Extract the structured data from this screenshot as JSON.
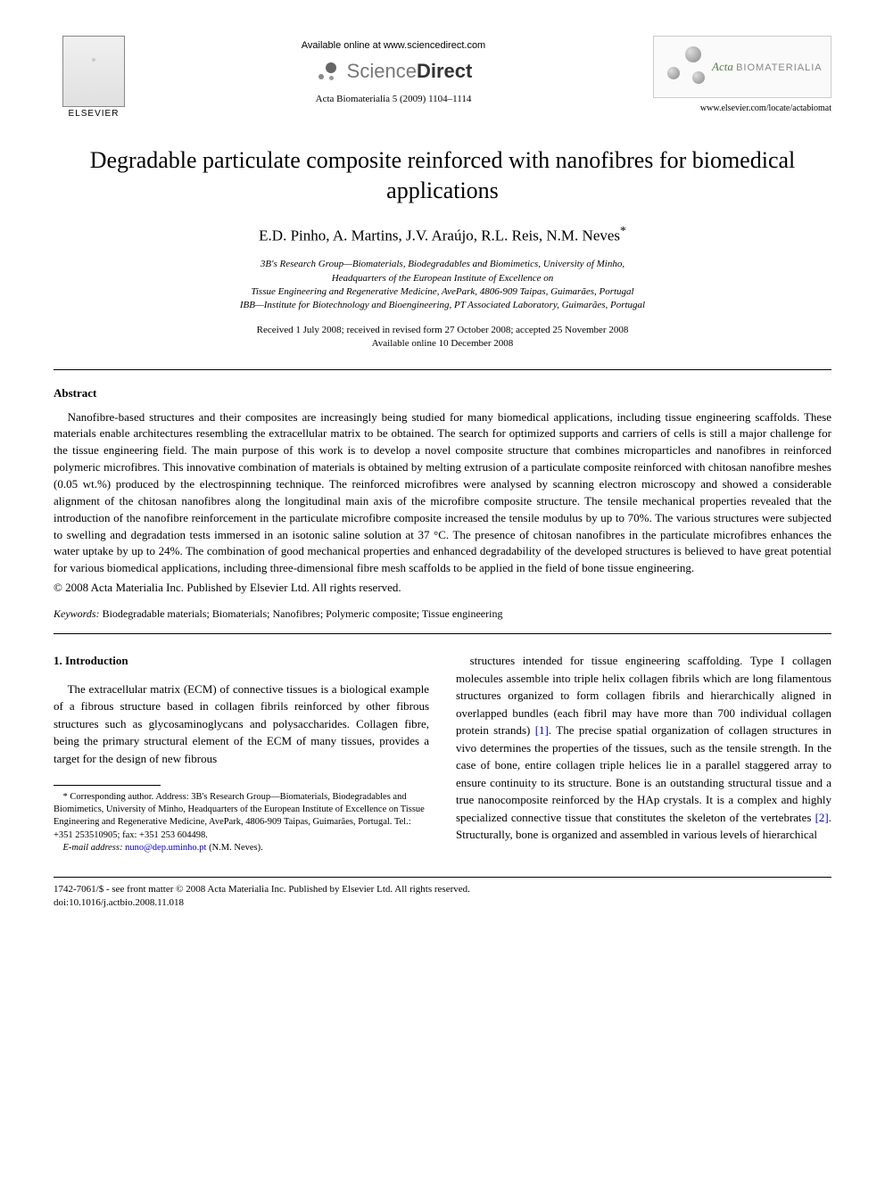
{
  "header": {
    "elsevier_label": "ELSEVIER",
    "available_online": "Available online at www.sciencedirect.com",
    "sciencedirect_light": "Science",
    "sciencedirect_bold": "Direct",
    "citation": "Acta Biomaterialia 5 (2009) 1104–1114",
    "journal_acta": "Acta",
    "journal_bio": "BIOMATERIALIA",
    "journal_url": "www.elsevier.com/locate/actabiomat"
  },
  "article": {
    "title": "Degradable particulate composite reinforced with nanofibres for biomedical applications",
    "authors": "E.D. Pinho, A. Martins, J.V. Araújo, R.L. Reis, N.M. Neves",
    "corr_marker": "*",
    "affiliation1": "3B's Research Group—Biomaterials, Biodegradables and Biomimetics, University of Minho,",
    "affiliation2": "Headquarters of the European Institute of Excellence on",
    "affiliation3": "Tissue Engineering and Regenerative Medicine, AvePark, 4806-909 Taipas, Guimarães, Portugal",
    "affiliation4": "IBB—Institute for Biotechnology and Bioengineering, PT Associated Laboratory, Guimarães, Portugal",
    "dates1": "Received 1 July 2008; received in revised form 27 October 2008; accepted 25 November 2008",
    "dates2": "Available online 10 December 2008"
  },
  "abstract": {
    "heading": "Abstract",
    "body": "Nanofibre-based structures and their composites are increasingly being studied for many biomedical applications, including tissue engineering scaffolds. These materials enable architectures resembling the extracellular matrix to be obtained. The search for optimized supports and carriers of cells is still a major challenge for the tissue engineering field. The main purpose of this work is to develop a novel composite structure that combines microparticles and nanofibres in reinforced polymeric microfibres. This innovative combination of materials is obtained by melting extrusion of a particulate composite reinforced with chitosan nanofibre meshes (0.05 wt.%) produced by the electrospinning technique. The reinforced microfibres were analysed by scanning electron microscopy and showed a considerable alignment of the chitosan nanofibres along the longitudinal main axis of the microfibre composite structure. The tensile mechanical properties revealed that the introduction of the nanofibre reinforcement in the particulate microfibre composite increased the tensile modulus by up to 70%. The various structures were subjected to swelling and degradation tests immersed in an isotonic saline solution at 37 °C. The presence of chitosan nanofibres in the particulate microfibres enhances the water uptake by up to 24%. The combination of good mechanical properties and enhanced degradability of the developed structures is believed to have great potential for various biomedical applications, including three-dimensional fibre mesh scaffolds to be applied in the field of bone tissue engineering.",
    "copyright": "© 2008 Acta Materialia Inc. Published by Elsevier Ltd. All rights reserved."
  },
  "keywords": {
    "label": "Keywords:",
    "list": "Biodegradable materials; Biomaterials; Nanofibres; Polymeric composite; Tissue engineering"
  },
  "intro": {
    "heading": "1. Introduction",
    "col1": "The extracellular matrix (ECM) of connective tissues is a biological example of a fibrous structure based in collagen fibrils reinforced by other fibrous structures such as glycosaminoglycans and polysaccharides. Collagen fibre, being the primary structural element of the ECM of many tissues, provides a target for the design of new fibrous",
    "col2a": "structures intended for tissue engineering scaffolding. Type I collagen molecules assemble into triple helix collagen fibrils which are long filamentous structures organized to form collagen fibrils and hierarchically aligned in overlapped bundles (each fibril may have more than 700 individual collagen protein strands) ",
    "ref1": "[1]",
    "col2b": ". The precise spatial organization of collagen structures in vivo determines the properties of the tissues, such as the tensile strength. In the case of bone, entire collagen triple helices lie in a parallel staggered array to ensure continuity to its structure. Bone is an outstanding structural tissue and a true nanocomposite reinforced by the HAp crystals. It is a complex and highly specialized connective tissue that constitutes the skeleton of the vertebrates ",
    "ref2": "[2]",
    "col2c": ". Structurally, bone is organized and assembled in various levels of hierarchical"
  },
  "footnote": {
    "corr": "* Corresponding author. Address: 3B's Research Group—Biomaterials, Biodegradables and Biomimetics, University of Minho, Headquarters of the European Institute of Excellence on Tissue Engineering and Regenerative Medicine, AvePark, 4806-909 Taipas, Guimarães, Portugal. Tel.: +351 253510905; fax: +351 253 604498.",
    "email_label": "E-mail address:",
    "email": "nuno@dep.uminho.pt",
    "email_suffix": "(N.M. Neves)."
  },
  "footer": {
    "line1": "1742-7061/$ - see front matter © 2008 Acta Materialia Inc. Published by Elsevier Ltd. All rights reserved.",
    "line2": "doi:10.1016/j.actbio.2008.11.018"
  },
  "colors": {
    "text": "#000000",
    "background": "#ffffff",
    "link": "#0000cc",
    "journal_green": "#5a7a4a",
    "logo_gray": "#888888"
  }
}
